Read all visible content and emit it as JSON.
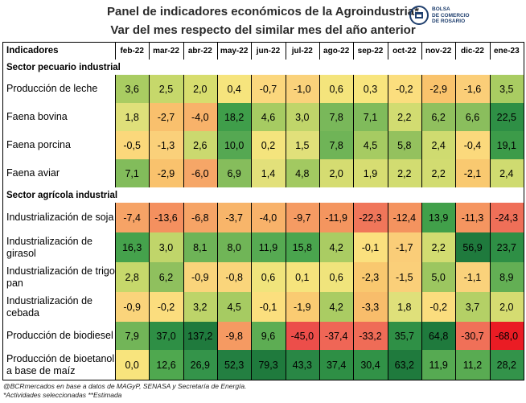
{
  "title": "Panel de indicadores económicos de la Agroindustria*",
  "subtitle": "Var del mes respecto del similar mes del año anterior",
  "logo": {
    "name": "BOLSA DE COMERCIO DE ROSARIO"
  },
  "footer": {
    "source": "@BCRmercados en base a datos de MAGyP, SENASA y Secretaría de Energía.",
    "notes": "*Actividades seleccionadas **Estimada"
  },
  "chart_data": {
    "type": "table",
    "header_label": "Indicadores",
    "columns": [
      "feb-22",
      "mar-22",
      "abr-22",
      "may-22",
      "jun-22",
      "jul-22",
      "ago-22",
      "sep-22",
      "oct-22",
      "nov-22",
      "dic-22",
      "ene-23"
    ],
    "sections": [
      {
        "name": "Sector pecuario industrial",
        "rows": [
          {
            "label": "Producción de leche",
            "values": [
              "3,6",
              "2,5",
              "2,0",
              "0,4",
              "-0,7",
              "-1,0",
              "0,6",
              "0,3",
              "-0,2",
              "-2,9",
              "-1,6",
              "3,5"
            ],
            "colors": [
              "#a9cc62",
              "#c6d86b",
              "#d7dd6e",
              "#f6e47d",
              "#fbd77d",
              "#fad27b",
              "#f4e47c",
              "#f8e57d",
              "#fbde7e",
              "#f9c36c",
              "#fbce78",
              "#a9cc62"
            ]
          },
          {
            "label": "Faena bovina",
            "values": [
              "1,8",
              "-2,7",
              "-4,0",
              "18,2",
              "4,6",
              "3,0",
              "7,8",
              "7,1",
              "2,2",
              "6,2",
              "6,6",
              "22,5"
            ],
            "colors": [
              "#dfe07a",
              "#f9c06d",
              "#f8b26a",
              "#3f9e4a",
              "#a6cb62",
              "#c0d56a",
              "#79b85a",
              "#80bb5b",
              "#d2dc71",
              "#90c05e",
              "#8abe5d",
              "#2e8f45"
            ]
          },
          {
            "label": "Faena porcina",
            "values": [
              "-0,5",
              "-1,3",
              "2,6",
              "10,0",
              "0,2",
              "1,5",
              "7,8",
              "4,5",
              "5,8",
              "2,4",
              "-0,4",
              "19,1"
            ],
            "colors": [
              "#fbd87b",
              "#fad07a",
              "#cbd96f",
              "#55a852",
              "#f4e47d",
              "#e1e07a",
              "#6fb457",
              "#a6cb62",
              "#94c15e",
              "#cfdb70",
              "#fbd97c",
              "#3c9b49"
            ]
          },
          {
            "label": "Faena aviar",
            "values": [
              "7,1",
              "-2,9",
              "-6,0",
              "6,9",
              "1,4",
              "4,8",
              "2,0",
              "1,9",
              "2,2",
              "2,2",
              "-2,1",
              "2,4"
            ],
            "colors": [
              "#82bc5b",
              "#f9c26d",
              "#f6a667",
              "#86bd5c",
              "#e2e07a",
              "#a2c961",
              "#d5dc71",
              "#d7dd72",
              "#d2dc71",
              "#d2dc71",
              "#f9c970",
              "#cfdb70"
            ]
          }
        ]
      },
      {
        "name": "Sector agrícola industrial",
        "rows": [
          {
            "label": "Industrialización de soja",
            "values": [
              "-7,4",
              "-13,6",
              "-6,8",
              "-3,7",
              "-4,0",
              "-9,7",
              "-11,9",
              "-22,3",
              "-12,4",
              "13,9",
              "-11,3",
              "-24,3"
            ],
            "colors": [
              "#f6a366",
              "#f4905f",
              "#f6a466",
              "#f8b56a",
              "#f8b26a",
              "#f59b63",
              "#f4955f",
              "#f0765a",
              "#f4935f",
              "#41a04a",
              "#f59560",
              "#ef6f58"
            ]
          },
          {
            "label": "Industrialización de girasol",
            "values": [
              "16,3",
              "3,0",
              "8,1",
              "8,0",
              "11,9",
              "15,8",
              "4,2",
              "-0,1",
              "-1,7",
              "2,2",
              "56,9",
              "23,7"
            ],
            "colors": [
              "#45a24c",
              "#c0d56a",
              "#6eb457",
              "#70b557",
              "#56aa52",
              "#4aa54e",
              "#aacc63",
              "#fbe07e",
              "#facd78",
              "#d2dc71",
              "#1f7a3d",
              "#2e8f45"
            ]
          },
          {
            "label": "Industrialización de trigo pan",
            "values": [
              "2,8",
              "6,2",
              "-0,9",
              "-0,8",
              "0,6",
              "0,1",
              "0,6",
              "-2,3",
              "-1,5",
              "5,0",
              "-1,1",
              "8,9"
            ],
            "colors": [
              "#c6d86b",
              "#8fc05e",
              "#fad47b",
              "#fad57b",
              "#f0e47c",
              "#f6e47d",
              "#f0e47c",
              "#f9c86f",
              "#facf79",
              "#9cc660",
              "#fad27b",
              "#63af54"
            ]
          },
          {
            "label": "Industrialización de cebada",
            "values": [
              "-0,9",
              "-0,2",
              "3,2",
              "4,5",
              "-0,1",
              "-1,9",
              "4,2",
              "-3,3",
              "1,8",
              "-0,2",
              "3,7",
              "2,0"
            ],
            "colors": [
              "#fad47b",
              "#fbdd7e",
              "#bdd469",
              "#a6cb62",
              "#fbdf7e",
              "#facb72",
              "#aacc63",
              "#f8bd6b",
              "#dfe07a",
              "#fbdd7e",
              "#b4d066",
              "#d5dc71"
            ]
          },
          {
            "label": "Producción de biodiesel",
            "values": [
              "7,9",
              "37,0",
              "137,2",
              "-9,8",
              "9,6",
              "-45,0",
              "-37,4",
              "-33,2",
              "35,7",
              "64,8",
              "-30,7",
              "-68,0"
            ],
            "colors": [
              "#72b558",
              "#2e8f45",
              "#1f7a3d",
              "#f59a62",
              "#5dad53",
              "#ec4e4a",
              "#ef6656",
              "#ef6c57",
              "#2f9046",
              "#1f7a3d",
              "#f07058",
              "#ea1c24"
            ]
          },
          {
            "label": "Producción de bioetanol a base de maíz",
            "values": [
              "0,0",
              "12,6",
              "26,9",
              "52,3",
              "79,3",
              "43,3",
              "37,4",
              "30,4",
              "63,2",
              "11,9",
              "11,2",
              "28,2"
            ],
            "colors": [
              "#f8e47d",
              "#4fa84f",
              "#34944a",
              "#237f41",
              "#1f7a3d",
              "#298745",
              "#2e8f45",
              "#319247",
              "#1f7a3d",
              "#56aa52",
              "#59ab52",
              "#33934a"
            ]
          }
        ]
      }
    ]
  }
}
